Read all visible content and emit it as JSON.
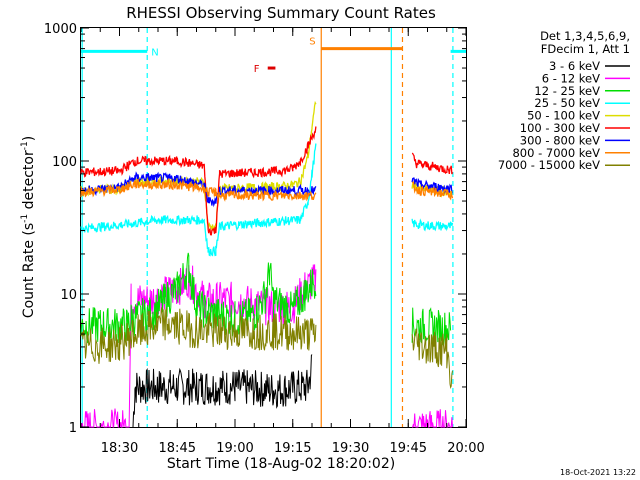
{
  "chart_data": {
    "type": "line",
    "title": "RHESSI Observing Summary Count Rates",
    "xlabel": "Start Time (18-Aug-02 18:20:02)",
    "ylabel_main": "Count Rate (s",
    "ylabel_sup1": "-1",
    "ylabel_mid": " detector",
    "ylabel_sup2": "-1",
    "ylabel_end": ")",
    "yscale": "log",
    "ylim": [
      1,
      1000
    ],
    "xlim_minutes": [
      0,
      100
    ],
    "x_ticks": [
      {
        "m": 10,
        "label": "18:30"
      },
      {
        "m": 25,
        "label": "18:45"
      },
      {
        "m": 40,
        "label": "19:00"
      },
      {
        "m": 55,
        "label": "19:15"
      },
      {
        "m": 70,
        "label": "19:30"
      },
      {
        "m": 85,
        "label": "19:45"
      },
      {
        "m": 100,
        "label": "20:00"
      }
    ],
    "y_ticks": [
      {
        "v": 1,
        "label": "1"
      },
      {
        "v": 10,
        "label": "10"
      },
      {
        "v": 100,
        "label": "100"
      },
      {
        "v": 1000,
        "label": "1000"
      }
    ],
    "legend_header": [
      "Det 1,3,4,5,6,9,",
      "FDecim 1, Att 1"
    ],
    "legend_location": "right, outside",
    "series": [
      {
        "name": "3 - 6 keV",
        "color": "#000000",
        "segments": [
          [
            [
              13.5,
              1
            ],
            [
              14,
              2
            ],
            [
              20,
              2
            ],
            [
              30,
              2
            ],
            [
              40,
              2
            ],
            [
              50,
              1.9
            ],
            [
              59,
              2
            ],
            [
              60,
              3
            ]
          ]
        ]
      },
      {
        "name": "6 - 12 keV",
        "color": "#ff00ff",
        "segments": [
          [
            [
              0,
              1
            ],
            [
              12.5,
              1
            ],
            [
              13,
              9
            ],
            [
              18,
              9
            ],
            [
              25,
              11
            ],
            [
              28,
              13
            ],
            [
              32,
              9
            ],
            [
              40,
              9
            ],
            [
              48,
              8
            ],
            [
              55,
              8
            ],
            [
              58,
              11
            ],
            [
              60,
              12
            ],
            [
              61,
              13
            ]
          ],
          [
            [
              86,
              1
            ],
            [
              96.5,
              1
            ]
          ]
        ]
      },
      {
        "name": "12 - 25 keV",
        "color": "#00dd00",
        "segments": [
          [
            [
              0,
              5.8
            ],
            [
              12,
              5.8
            ],
            [
              13,
              6.5
            ],
            [
              18,
              7
            ],
            [
              22,
              9
            ],
            [
              25,
              11
            ],
            [
              28,
              16
            ],
            [
              30,
              8
            ],
            [
              35,
              7
            ],
            [
              40,
              6.5
            ],
            [
              45,
              7
            ],
            [
              48,
              10
            ],
            [
              49,
              15
            ],
            [
              50,
              9
            ],
            [
              55,
              7.5
            ],
            [
              58,
              10
            ],
            [
              60,
              12
            ],
            [
              61,
              13
            ]
          ],
          [
            [
              86,
              5.8
            ],
            [
              96,
              5.5
            ]
          ]
        ]
      },
      {
        "name": "25 - 50 keV",
        "color": "#00ffff",
        "segments": [
          [
            [
              0,
              31
            ],
            [
              10,
              33
            ],
            [
              14,
              34
            ],
            [
              20,
              36
            ],
            [
              32,
              36
            ],
            [
              33,
              21
            ],
            [
              35,
              21
            ],
            [
              36,
              32
            ],
            [
              40,
              33
            ],
            [
              50,
              35
            ],
            [
              57,
              36
            ],
            [
              59,
              50
            ],
            [
              60,
              80
            ],
            [
              61,
              130
            ]
          ],
          [
            [
              86,
              34
            ],
            [
              88,
              33
            ],
            [
              96.5,
              32
            ]
          ]
        ]
      },
      {
        "name": "50 - 100 keV",
        "color": "#dddd00",
        "segments": [
          [
            [
              0,
              60
            ],
            [
              10,
              62
            ],
            [
              14,
              70
            ],
            [
              25,
              71
            ],
            [
              32,
              69
            ],
            [
              33,
              32
            ],
            [
              35,
              32
            ],
            [
              36,
              62
            ],
            [
              45,
              63
            ],
            [
              52,
              64
            ],
            [
              55,
              66
            ],
            [
              57,
              70
            ],
            [
              59,
              110
            ],
            [
              60,
              180
            ],
            [
              61,
              280
            ]
          ],
          [
            [
              86,
              65
            ],
            [
              88,
              62
            ],
            [
              96.5,
              58
            ]
          ]
        ]
      },
      {
        "name": "100 - 300 keV",
        "color": "#ff0000",
        "segments": [
          [
            [
              0,
              82
            ],
            [
              10,
              84
            ],
            [
              14,
              100
            ],
            [
              25,
              100
            ],
            [
              32,
              92
            ],
            [
              33,
              30
            ],
            [
              35,
              30
            ],
            [
              36,
              80
            ],
            [
              45,
              82
            ],
            [
              52,
              84
            ],
            [
              55,
              88
            ],
            [
              57,
              100
            ],
            [
              59,
              130
            ],
            [
              61,
              175
            ]
          ],
          [
            [
              86,
              110
            ],
            [
              87,
              96
            ],
            [
              96.5,
              85
            ]
          ]
        ]
      },
      {
        "name": "300 - 800 keV",
        "color": "#0000ff",
        "segments": [
          [
            [
              0,
              60
            ],
            [
              10,
              63
            ],
            [
              14,
              75
            ],
            [
              25,
              74
            ],
            [
              32,
              66
            ],
            [
              33,
              50
            ],
            [
              35,
              50
            ],
            [
              36,
              60
            ],
            [
              61,
              60
            ]
          ],
          [
            [
              86,
              72
            ],
            [
              88,
              66
            ],
            [
              96.5,
              62
            ]
          ]
        ]
      },
      {
        "name": "800 - 7000 keV",
        "color": "#ff8000",
        "segments": [
          [
            [
              0,
              58
            ],
            [
              10,
              61
            ],
            [
              14,
              67
            ],
            [
              25,
              66
            ],
            [
              32,
              62
            ],
            [
              33,
              58
            ],
            [
              35,
              58
            ],
            [
              36,
              55
            ],
            [
              61,
              55
            ]
          ],
          [
            [
              86,
              65
            ],
            [
              88,
              60
            ],
            [
              96.5,
              56
            ]
          ]
        ]
      },
      {
        "name": "7000 - 15000 keV",
        "color": "#808000",
        "segments": [
          [
            [
              0,
              4
            ],
            [
              10,
              4.2
            ],
            [
              14,
              5
            ],
            [
              22,
              6
            ],
            [
              30,
              5.3
            ],
            [
              40,
              5.2
            ],
            [
              50,
              5.2
            ],
            [
              61,
              5
            ]
          ],
          [
            [
              86,
              4.5
            ],
            [
              90,
              4
            ],
            [
              95,
              3.8
            ],
            [
              96.5,
              2
            ]
          ]
        ]
      }
    ],
    "markers": [
      {
        "label": "N",
        "start_m": 0,
        "end_m": 17.2,
        "y": 667,
        "color": "#00ffff"
      },
      {
        "label": "S",
        "start_m": 62.4,
        "end_m": 83.5,
        "y": 700,
        "color": "#ff8000"
      },
      {
        "label": "F",
        "start_m": 48.5,
        "end_m": 50.5,
        "y": 500,
        "color": "#dd0000"
      },
      {
        "label": "",
        "start_m": 96,
        "end_m": 100,
        "y": 667,
        "color": "#00ffff"
      }
    ],
    "vlines": [
      {
        "m": 0.3,
        "color": "#00ffff",
        "dash": false
      },
      {
        "m": 17.2,
        "color": "#00ffff",
        "dash": true
      },
      {
        "m": 62.4,
        "color": "#ff8000",
        "dash": false
      },
      {
        "m": 80.6,
        "color": "#00ffff",
        "dash": false
      },
      {
        "m": 83.5,
        "color": "#ff8000",
        "dash": true
      },
      {
        "m": 96.6,
        "color": "#00ffff",
        "dash": true
      }
    ],
    "grid": false
  },
  "footer_date": "18-Oct-2021 13:22"
}
